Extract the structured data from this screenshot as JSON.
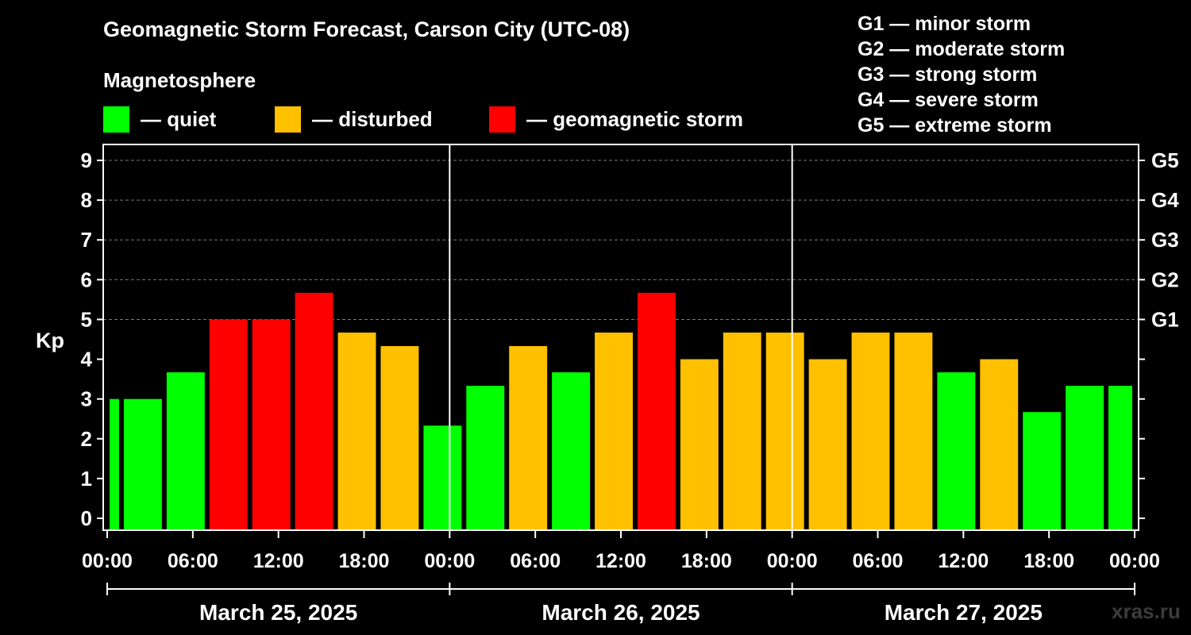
{
  "title": "Geomagnetic Storm Forecast, Carson City (UTC-08)",
  "legend": {
    "heading": "Magnetosphere",
    "items": [
      {
        "label": "— quiet",
        "color": "#00ff00"
      },
      {
        "label": "— disturbed",
        "color": "#ffc000"
      },
      {
        "label": "— geomagnetic storm",
        "color": "#ff0000"
      }
    ]
  },
  "g_scale": [
    "G1 — minor storm",
    "G2 — moderate storm",
    "G3 — strong storm",
    "G4 — severe storm",
    "G5 — extreme storm"
  ],
  "watermark": "xras.ru",
  "colors": {
    "quiet": "#00ff00",
    "disturbed": "#ffc000",
    "storm": "#ff0000",
    "grid": "#7a7a7a"
  },
  "chart_data": {
    "type": "bar",
    "title": "Geomagnetic Storm Forecast, Carson City (UTC-08)",
    "ylabel": "Kp",
    "ylim": [
      -0.3,
      9.4
    ],
    "y_ticks": [
      0,
      1,
      2,
      3,
      4,
      5,
      6,
      7,
      8,
      9
    ],
    "right_ticks": [
      {
        "kp": 5,
        "label": "G1"
      },
      {
        "kp": 6,
        "label": "G2"
      },
      {
        "kp": 7,
        "label": "G3"
      },
      {
        "kp": 8,
        "label": "G4"
      },
      {
        "kp": 9,
        "label": "G5"
      }
    ],
    "x_range_hours": [
      0,
      72
    ],
    "x_tick_hours": [
      0,
      6,
      12,
      18,
      24,
      30,
      36,
      42,
      48,
      54,
      60,
      66,
      72
    ],
    "x_tick_labels": [
      "00:00",
      "06:00",
      "12:00",
      "18:00",
      "00:00",
      "06:00",
      "12:00",
      "18:00",
      "00:00",
      "06:00",
      "12:00",
      "18:00",
      "00:00"
    ],
    "day_boundaries_hours": [
      24,
      48
    ],
    "days": [
      {
        "label": "March 25, 2025",
        "start": 0,
        "end": 24
      },
      {
        "label": "March 26, 2025",
        "start": 24,
        "end": 48
      },
      {
        "label": "March 27, 2025",
        "start": 48,
        "end": 72
      }
    ],
    "bars": [
      {
        "start": 0,
        "end": 1,
        "kp": 3.0,
        "status": "quiet"
      },
      {
        "start": 1,
        "end": 4,
        "kp": 3.0,
        "status": "quiet"
      },
      {
        "start": 4,
        "end": 7,
        "kp": 3.67,
        "status": "quiet"
      },
      {
        "start": 7,
        "end": 10,
        "kp": 5.0,
        "status": "storm"
      },
      {
        "start": 10,
        "end": 13,
        "kp": 5.0,
        "status": "storm"
      },
      {
        "start": 13,
        "end": 16,
        "kp": 5.67,
        "status": "storm"
      },
      {
        "start": 16,
        "end": 19,
        "kp": 4.67,
        "status": "disturbed"
      },
      {
        "start": 19,
        "end": 22,
        "kp": 4.33,
        "status": "disturbed"
      },
      {
        "start": 22,
        "end": 25,
        "kp": 2.33,
        "status": "quiet"
      },
      {
        "start": 25,
        "end": 28,
        "kp": 3.33,
        "status": "quiet"
      },
      {
        "start": 28,
        "end": 31,
        "kp": 4.33,
        "status": "disturbed"
      },
      {
        "start": 31,
        "end": 34,
        "kp": 3.67,
        "status": "quiet"
      },
      {
        "start": 34,
        "end": 37,
        "kp": 4.67,
        "status": "disturbed"
      },
      {
        "start": 37,
        "end": 40,
        "kp": 5.67,
        "status": "storm"
      },
      {
        "start": 40,
        "end": 43,
        "kp": 4.0,
        "status": "disturbed"
      },
      {
        "start": 43,
        "end": 46,
        "kp": 4.67,
        "status": "disturbed"
      },
      {
        "start": 46,
        "end": 49,
        "kp": 4.67,
        "status": "disturbed"
      },
      {
        "start": 49,
        "end": 52,
        "kp": 4.0,
        "status": "disturbed"
      },
      {
        "start": 52,
        "end": 55,
        "kp": 4.67,
        "status": "disturbed"
      },
      {
        "start": 55,
        "end": 58,
        "kp": 4.67,
        "status": "disturbed"
      },
      {
        "start": 58,
        "end": 61,
        "kp": 3.67,
        "status": "quiet"
      },
      {
        "start": 61,
        "end": 64,
        "kp": 4.0,
        "status": "disturbed"
      },
      {
        "start": 64,
        "end": 67,
        "kp": 2.67,
        "status": "quiet"
      },
      {
        "start": 67,
        "end": 70,
        "kp": 3.33,
        "status": "quiet"
      },
      {
        "start": 70,
        "end": 72,
        "kp": 3.33,
        "status": "quiet"
      }
    ]
  }
}
